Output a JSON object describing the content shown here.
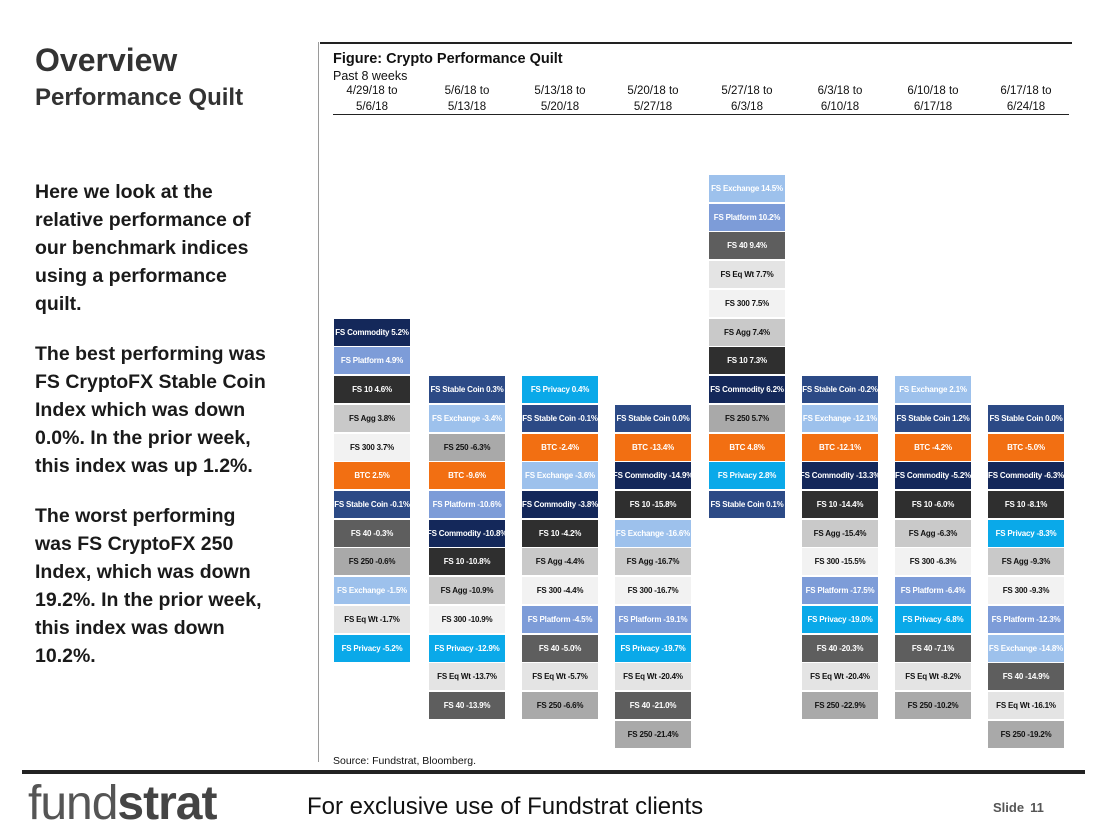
{
  "slide": {
    "title": "Overview",
    "subtitle": "Performance Quilt",
    "paragraphs": [
      "Here we look at the\nrelative performance of\nour benchmark indices\nusing a performance\nquilt.",
      "The best performing was\nFS CryptoFX Stable Coin\nIndex which was down\n0.0%.  In the prior week,\nthis index was up 1.2%.",
      "The worst performing\nwas FS CryptoFX 250\nIndex, which was down\n19.2%. In the prior week,\nthis index was down\n10.2%."
    ],
    "footer_text": "For exclusive use of Fundstrat clients",
    "logo_light": "fund",
    "logo_bold": "strat",
    "slide_label": "Slide",
    "slide_number": "11"
  },
  "colors": {
    "FS Commodity": "#14285a",
    "FS Platform": "#7d9cd8",
    "FS 10": "#2f2f2f",
    "FS Agg": "#c9c9c9",
    "FS 300": "#f2f2f2",
    "BTC": "#f26f12",
    "FS Stable Coin": "#2c4a86",
    "FS 40": "#5e5e5e",
    "FS 250": "#a9a9a9",
    "FS Exchange": "#9dc1ec",
    "FS Eq Wt": "#e4e4e4",
    "FS Privacy": "#0aa9e9"
  },
  "chart_data": {
    "type": "table",
    "title": "Figure: Crypto Performance Quilt",
    "subtitle": "Past 8 weeks",
    "source": "Source: Fundstrat, Bloomberg.",
    "btc_row": 9,
    "categories": [
      "4/29/18 to\n5/6/18",
      "5/6/18 to\n5/13/18",
      "5/13/18 to\n5/20/18",
      "5/20/18 to\n5/27/18",
      "5/27/18 to\n6/3/18",
      "6/3/18 to\n6/10/18",
      "6/10/18 to\n6/17/18",
      "6/17/18 to\n6/24/18"
    ],
    "series": [
      {
        "name": "4/29/18 to 5/6/18",
        "btc_index": 4,
        "cells": [
          {
            "index": "FS Commodity",
            "label": "FS Commodity 5.2%",
            "value": 5.2
          },
          {
            "index": "FS Platform",
            "label": "FS Platform 4.9%",
            "value": 4.9
          },
          {
            "index": "FS 10",
            "label": "FS 10 4.6%",
            "value": 4.6
          },
          {
            "index": "FS Agg",
            "label": "FS Agg 3.8%",
            "value": 3.8
          },
          {
            "index": "FS 300",
            "label": "FS 300 3.7%",
            "value": 3.7
          },
          {
            "index": "BTC",
            "label": "BTC 2.5%",
            "value": 2.5
          },
          {
            "index": "FS Stable Coin",
            "label": "FS Stable Coin -0.1%",
            "value": -0.1
          },
          {
            "index": "FS 40",
            "label": "FS 40 -0.3%",
            "value": -0.3
          },
          {
            "index": "FS 250",
            "label": "FS 250 -0.6%",
            "value": -0.6
          },
          {
            "index": "FS Exchange",
            "label": "FS Exchange -1.5%",
            "value": -1.5
          },
          {
            "index": "FS Eq Wt",
            "label": "FS Eq Wt -1.7%",
            "value": -1.7
          },
          {
            "index": "FS Privacy",
            "label": "FS Privacy -5.2%",
            "value": -5.2
          }
        ]
      },
      {
        "name": "5/6/18 to 5/13/18",
        "btc_index": 2,
        "cells": [
          {
            "index": "FS Stable Coin",
            "label": "FS Stable Coin 0.3%",
            "value": 0.3
          },
          {
            "index": "FS Exchange",
            "label": "FS Exchange -3.4%",
            "value": -3.4
          },
          {
            "index": "FS 250",
            "label": "FS 250 -6.3%",
            "value": -6.3
          },
          {
            "index": "BTC",
            "label": "BTC -9.6%",
            "value": -9.6
          },
          {
            "index": "FS Platform",
            "label": "FS Platform -10.6%",
            "value": -10.6
          },
          {
            "index": "FS Commodity",
            "label": "FS Commodity -10.8%",
            "value": -10.8
          },
          {
            "index": "FS 10",
            "label": "FS 10 -10.8%",
            "value": -10.8
          },
          {
            "index": "FS Agg",
            "label": "FS Agg -10.9%",
            "value": -10.9
          },
          {
            "index": "FS 300",
            "label": "FS 300 -10.9%",
            "value": -10.9
          },
          {
            "index": "FS Privacy",
            "label": "FS Privacy -12.9%",
            "value": -12.9
          },
          {
            "index": "FS Eq Wt",
            "label": "FS Eq Wt -13.7%",
            "value": -13.7
          },
          {
            "index": "FS 40",
            "label": "FS 40 -13.9%",
            "value": -13.9
          }
        ]
      },
      {
        "name": "5/13/18 to 5/20/18",
        "btc_index": 2,
        "cells": [
          {
            "index": "FS Privacy",
            "label": "FS Privacy 0.4%",
            "value": 0.4
          },
          {
            "index": "FS Stable Coin",
            "label": "FS Stable Coin -0.1%",
            "value": -0.1
          },
          {
            "index": "BTC",
            "label": "BTC -2.4%",
            "value": -2.4
          },
          {
            "index": "FS Exchange",
            "label": "FS Exchange -3.6%",
            "value": -3.6
          },
          {
            "index": "FS Commodity",
            "label": "FS Commodity -3.8%",
            "value": -3.8
          },
          {
            "index": "FS 10",
            "label": "FS 10 -4.2%",
            "value": -4.2
          },
          {
            "index": "FS Agg",
            "label": "FS Agg -4.4%",
            "value": -4.4
          },
          {
            "index": "FS 300",
            "label": "FS 300 -4.4%",
            "value": -4.4
          },
          {
            "index": "FS Platform",
            "label": "FS Platform -4.5%",
            "value": -4.5
          },
          {
            "index": "FS 40",
            "label": "FS 40 -5.0%",
            "value": -5.0
          },
          {
            "index": "FS Eq Wt",
            "label": "FS Eq Wt -5.7%",
            "value": -5.7
          },
          {
            "index": "FS 250",
            "label": "FS 250 -6.6%",
            "value": -6.6
          }
        ]
      },
      {
        "name": "5/20/18 to 5/27/18",
        "btc_index": 1,
        "cells": [
          {
            "index": "FS Stable Coin",
            "label": "FS Stable Coin 0.0%",
            "value": 0.0
          },
          {
            "index": "BTC",
            "label": "BTC -13.4%",
            "value": -13.4
          },
          {
            "index": "FS Commodity",
            "label": "FS Commodity -14.9%",
            "value": -14.9
          },
          {
            "index": "FS 10",
            "label": "FS 10 -15.8%",
            "value": -15.8
          },
          {
            "index": "FS Exchange",
            "label": "FS Exchange -16.6%",
            "value": -16.6
          },
          {
            "index": "FS Agg",
            "label": "FS Agg -16.7%",
            "value": -16.7
          },
          {
            "index": "FS 300",
            "label": "FS 300 -16.7%",
            "value": -16.7
          },
          {
            "index": "FS Platform",
            "label": "FS Platform -19.1%",
            "value": -19.1
          },
          {
            "index": "FS Privacy",
            "label": "FS Privacy -19.7%",
            "value": -19.7
          },
          {
            "index": "FS Eq Wt",
            "label": "FS Eq Wt -20.4%",
            "value": -20.4
          },
          {
            "index": "FS 40",
            "label": "FS 40 -21.0%",
            "value": -21.0
          },
          {
            "index": "FS 250",
            "label": "FS 250 -21.4%",
            "value": -21.4
          }
        ]
      },
      {
        "name": "5/27/18 to 6/3/18",
        "btc_index": 9,
        "cells": [
          {
            "index": "FS Exchange",
            "label": "FS Exchange 14.5%",
            "value": 14.5
          },
          {
            "index": "FS Platform",
            "label": "FS Platform 10.2%",
            "value": 10.2
          },
          {
            "index": "FS 40",
            "label": "FS 40 9.4%",
            "value": 9.4
          },
          {
            "index": "FS Eq Wt",
            "label": "FS Eq Wt 7.7%",
            "value": 7.7
          },
          {
            "index": "FS 300",
            "label": "FS 300 7.5%",
            "value": 7.5
          },
          {
            "index": "FS Agg",
            "label": "FS Agg 7.4%",
            "value": 7.4
          },
          {
            "index": "FS 10",
            "label": "FS 10 7.3%",
            "value": 7.3
          },
          {
            "index": "FS Commodity",
            "label": "FS Commodity 6.2%",
            "value": 6.2
          },
          {
            "index": "FS 250",
            "label": "FS 250 5.7%",
            "value": 5.7
          },
          {
            "index": "BTC",
            "label": "BTC 4.8%",
            "value": 4.8
          },
          {
            "index": "FS Privacy",
            "label": "FS Privacy 2.8%",
            "value": 2.8
          },
          {
            "index": "FS Stable Coin",
            "label": "FS Stable Coin 0.1%",
            "value": 0.1
          }
        ]
      },
      {
        "name": "6/3/18 to 6/10/18",
        "btc_index": 2,
        "cells": [
          {
            "index": "FS Stable Coin",
            "label": "FS Stable Coin -0.2%",
            "value": -0.2
          },
          {
            "index": "FS Exchange",
            "label": "FS Exchange -12.1%",
            "value": -12.1
          },
          {
            "index": "BTC",
            "label": "BTC -12.1%",
            "value": -12.1
          },
          {
            "index": "FS Commodity",
            "label": "FS Commodity -13.3%",
            "value": -13.3
          },
          {
            "index": "FS 10",
            "label": "FS 10 -14.4%",
            "value": -14.4
          },
          {
            "index": "FS Agg",
            "label": "FS Agg -15.4%",
            "value": -15.4
          },
          {
            "index": "FS 300",
            "label": "FS 300 -15.5%",
            "value": -15.5
          },
          {
            "index": "FS Platform",
            "label": "FS Platform -17.5%",
            "value": -17.5
          },
          {
            "index": "FS Privacy",
            "label": "FS Privacy -19.0%",
            "value": -19.0
          },
          {
            "index": "FS 40",
            "label": "FS 40 -20.3%",
            "value": -20.3
          },
          {
            "index": "FS Eq Wt",
            "label": "FS Eq Wt -20.4%",
            "value": -20.4
          },
          {
            "index": "FS 250",
            "label": "FS 250 -22.9%",
            "value": -22.9
          }
        ]
      },
      {
        "name": "6/10/18 to 6/17/18",
        "btc_index": 2,
        "cells": [
          {
            "index": "FS Exchange",
            "label": "FS Exchange 2.1%",
            "value": 2.1
          },
          {
            "index": "FS Stable Coin",
            "label": "FS Stable Coin 1.2%",
            "value": 1.2
          },
          {
            "index": "BTC",
            "label": "BTC -4.2%",
            "value": -4.2
          },
          {
            "index": "FS Commodity",
            "label": "FS Commodity -5.2%",
            "value": -5.2
          },
          {
            "index": "FS 10",
            "label": "FS 10 -6.0%",
            "value": -6.0
          },
          {
            "index": "FS Agg",
            "label": "FS Agg -6.3%",
            "value": -6.3
          },
          {
            "index": "FS 300",
            "label": "FS 300 -6.3%",
            "value": -6.3
          },
          {
            "index": "FS Platform",
            "label": "FS Platform -6.4%",
            "value": -6.4
          },
          {
            "index": "FS Privacy",
            "label": "FS Privacy -6.8%",
            "value": -6.8
          },
          {
            "index": "FS 40",
            "label": "FS 40 -7.1%",
            "value": -7.1
          },
          {
            "index": "FS Eq Wt",
            "label": "FS Eq Wt -8.2%",
            "value": -8.2
          },
          {
            "index": "FS 250",
            "label": "FS 250 -10.2%",
            "value": -10.2
          }
        ]
      },
      {
        "name": "6/17/18 to 6/24/18",
        "btc_index": 1,
        "cells": [
          {
            "index": "FS Stable Coin",
            "label": "FS Stable Coin 0.0%",
            "value": 0.0
          },
          {
            "index": "BTC",
            "label": "BTC -5.0%",
            "value": -5.0
          },
          {
            "index": "FS Commodity",
            "label": "FS Commodity -6.3%",
            "value": -6.3
          },
          {
            "index": "FS 10",
            "label": "FS 10 -8.1%",
            "value": -8.1
          },
          {
            "index": "FS Privacy",
            "label": "FS Privacy -8.3%",
            "value": -8.3
          },
          {
            "index": "FS Agg",
            "label": "FS Agg -9.3%",
            "value": -9.3
          },
          {
            "index": "FS 300",
            "label": "FS 300 -9.3%",
            "value": -9.3
          },
          {
            "index": "FS Platform",
            "label": "FS Platform -12.3%",
            "value": -12.3
          },
          {
            "index": "FS Exchange",
            "label": "FS Exchange -14.8%",
            "value": -14.8
          },
          {
            "index": "FS 40",
            "label": "FS 40 -14.9%",
            "value": -14.9
          },
          {
            "index": "FS Eq Wt",
            "label": "FS Eq Wt -16.1%",
            "value": -16.1
          },
          {
            "index": "FS 250",
            "label": "FS 250 -19.2%",
            "value": -19.2
          }
        ]
      }
    ]
  }
}
